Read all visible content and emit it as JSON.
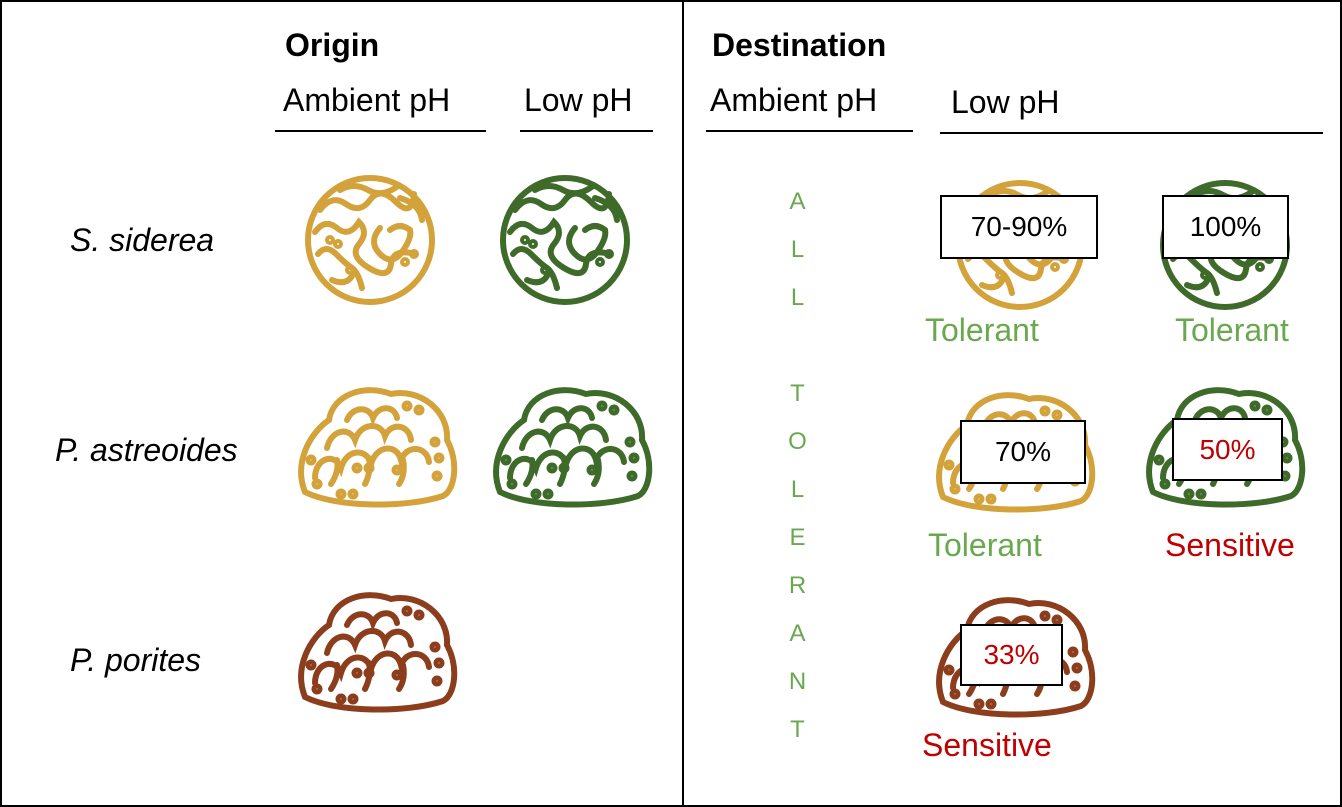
{
  "origin": {
    "title": "Origin",
    "columns": [
      "Ambient pH",
      "Low pH"
    ]
  },
  "species": [
    "S. siderea",
    "P. astreoides",
    "P. porites"
  ],
  "destination": {
    "title": "Destination",
    "columns": [
      "Ambient pH",
      "Low pH"
    ],
    "ambient_label": "ALL TOLERANT",
    "results": [
      [
        {
          "percent": "70-90%",
          "status": "Tolerant"
        },
        {
          "percent": "100%",
          "status": "Tolerant"
        }
      ],
      [
        {
          "percent": "70%",
          "status": "Tolerant"
        },
        {
          "percent": "50%",
          "status": "Sensitive"
        }
      ],
      [
        {
          "percent": "33%",
          "status": "Sensitive"
        }
      ]
    ]
  }
}
